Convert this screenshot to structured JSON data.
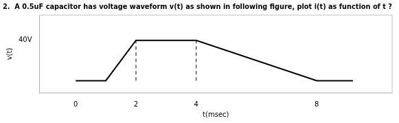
{
  "chart_data": {
    "type": "line",
    "title": "2.  A 0.5uF capacitor has voltage waveform v(t) as shown in following figure, plot i(t) as function of t ?",
    "x_label": "t(msec)",
    "y_label": "v(t)",
    "color": "black",
    "series": [
      {
        "x": [
          0,
          1,
          2,
          4,
          8,
          9.2
        ],
        "values": [
          0,
          0,
          40,
          40,
          0,
          0
        ]
      },
      {
        "x": [
          2,
          2
        ],
        "values": [
          0,
          40
        ],
        "line_style": "dashed"
      },
      {
        "x": [
          4,
          4
        ],
        "values": [
          0,
          40
        ],
        "line_style": "dashed"
      }
    ],
    "xlim": [
      -1.2,
      10.5
    ],
    "ylim": [
      -12,
      65
    ],
    "xticks": [
      0,
      2,
      4,
      8
    ],
    "yticks": [
      {
        "value": 40,
        "label": "40V"
      }
    ],
    "grid": false
  }
}
